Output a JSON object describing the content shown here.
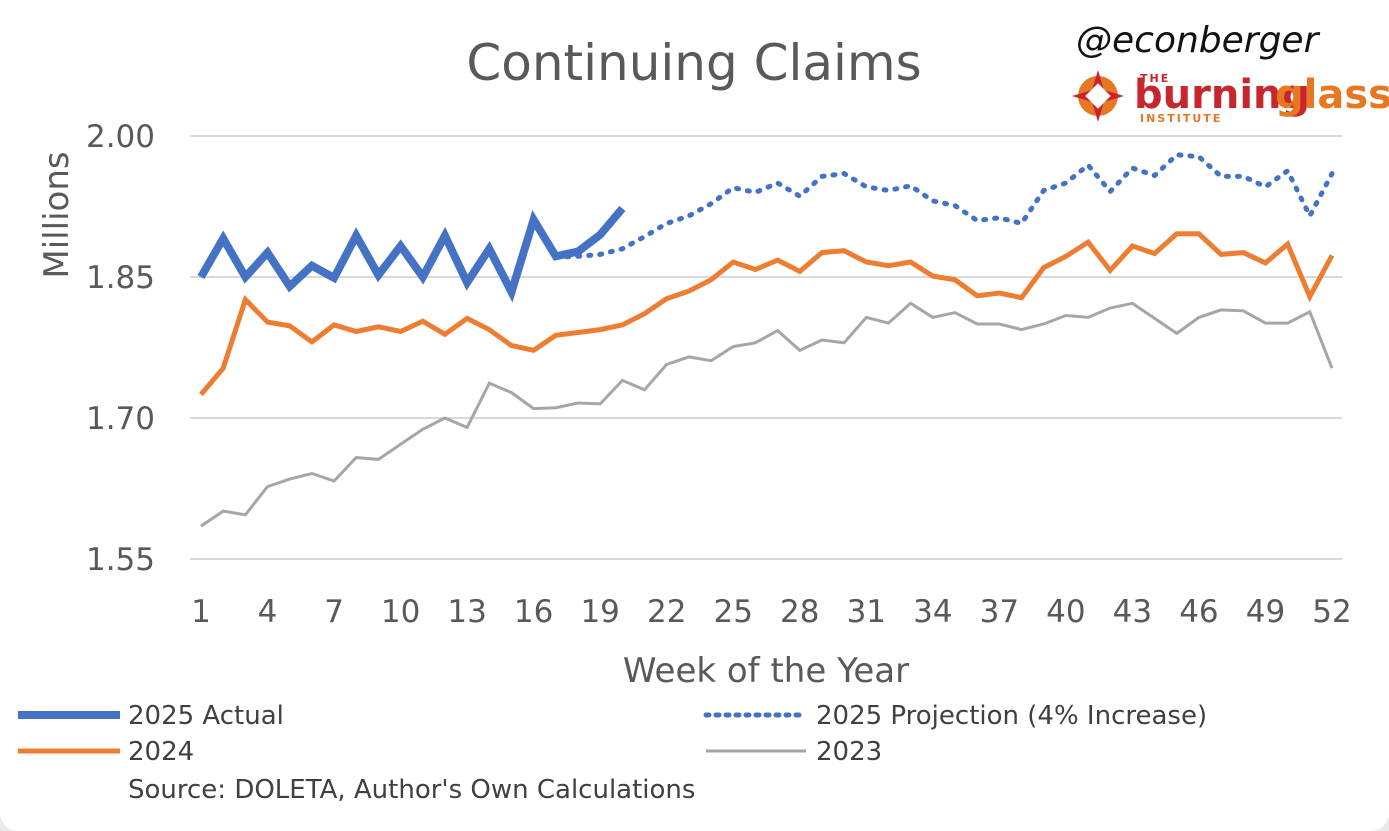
{
  "branding": {
    "handle": "@econberger",
    "logo_small_top": "THE",
    "logo_word_1": "burning",
    "logo_word_2": "glass",
    "logo_small_bottom": "INSTITUTE",
    "colors": {
      "red": "#c8262d",
      "orange": "#e87722"
    }
  },
  "source_note": "Source: DOLETA, Author's Own Calculations",
  "chart_data": {
    "type": "line",
    "title": "Continuing Claims",
    "xlabel": "Week of the Year",
    "ylabel": "Millions",
    "ylim": [
      1.55,
      2.0
    ],
    "xlim": [
      1,
      52
    ],
    "grid": true,
    "yticks": [
      "1.55",
      "1.70",
      "1.85",
      "2.00"
    ],
    "xticks": [
      "1",
      "4",
      "7",
      "10",
      "13",
      "16",
      "19",
      "22",
      "25",
      "28",
      "31",
      "34",
      "37",
      "40",
      "43",
      "46",
      "49",
      "52"
    ],
    "legend_position": "bottom",
    "series": [
      {
        "name": "2023",
        "color": "#a6a6a6",
        "style": "solid-thin",
        "x_start": 1,
        "values": [
          1.585,
          1.601,
          1.597,
          1.627,
          1.635,
          1.641,
          1.633,
          1.658,
          1.656,
          1.672,
          1.688,
          1.7,
          1.69,
          1.737,
          1.727,
          1.71,
          1.711,
          1.716,
          1.715,
          1.74,
          1.73,
          1.757,
          1.765,
          1.761,
          1.776,
          1.78,
          1.793,
          1.772,
          1.783,
          1.78,
          1.807,
          1.801,
          1.822,
          1.807,
          1.812,
          1.8,
          1.8,
          1.794,
          1.8,
          1.809,
          1.807,
          1.817,
          1.822,
          1.806,
          1.79,
          1.807,
          1.815,
          1.814,
          1.801,
          1.801,
          1.813,
          1.753
        ]
      },
      {
        "name": "2024",
        "color": "#ed7d31",
        "style": "solid",
        "x_start": 1,
        "values": [
          1.725,
          1.753,
          1.826,
          1.802,
          1.798,
          1.781,
          1.799,
          1.792,
          1.797,
          1.792,
          1.803,
          1.789,
          1.806,
          1.794,
          1.777,
          1.772,
          1.788,
          1.791,
          1.794,
          1.799,
          1.811,
          1.827,
          1.835,
          1.847,
          1.866,
          1.858,
          1.868,
          1.856,
          1.876,
          1.878,
          1.866,
          1.862,
          1.866,
          1.851,
          1.847,
          1.83,
          1.833,
          1.828,
          1.86,
          1.872,
          1.887,
          1.857,
          1.883,
          1.875,
          1.896,
          1.896,
          1.874,
          1.876,
          1.865,
          1.885,
          1.829,
          1.873
        ]
      },
      {
        "name": "2025 Projection (4% Increase)",
        "color": "#4472c4",
        "style": "dotted",
        "x_start": 17,
        "values": [
          1.871,
          1.872,
          1.874,
          1.88,
          1.893,
          1.907,
          1.915,
          1.928,
          1.945,
          1.94,
          1.95,
          1.936,
          1.957,
          1.96,
          1.946,
          1.942,
          1.947,
          1.931,
          1.926,
          1.91,
          1.913,
          1.907,
          1.942,
          1.95,
          1.969,
          1.941,
          1.966,
          1.958,
          1.98,
          1.978,
          1.957,
          1.957,
          1.946,
          1.963,
          1.915,
          1.96
        ]
      },
      {
        "name": "2025 Actual",
        "color": "#4472c4",
        "style": "solid-thick",
        "x_start": 1,
        "values": [
          1.85,
          1.891,
          1.85,
          1.876,
          1.84,
          1.862,
          1.849,
          1.894,
          1.852,
          1.883,
          1.85,
          1.894,
          1.844,
          1.88,
          1.834,
          1.911,
          1.872,
          1.877,
          1.895,
          1.923
        ]
      }
    ],
    "legend": [
      {
        "label": "2025 Actual",
        "series": "2025 Actual"
      },
      {
        "label": "2025 Projection (4% Increase)",
        "series": "2025 Projection (4% Increase)"
      },
      {
        "label": "2024",
        "series": "2024"
      },
      {
        "label": "2023",
        "series": "2023"
      }
    ]
  }
}
